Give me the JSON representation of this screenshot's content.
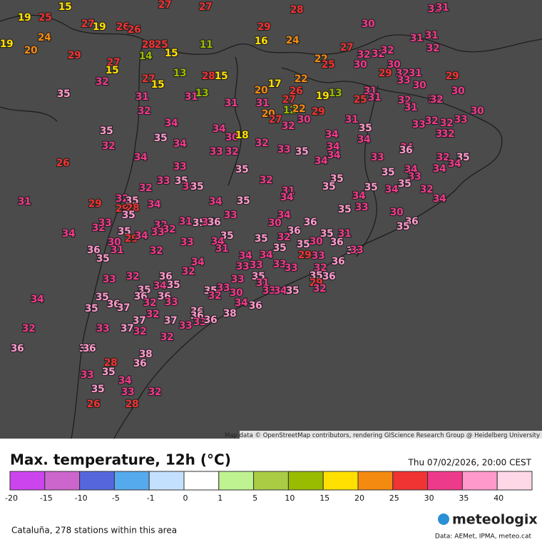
{
  "map": {
    "attribution": "Map data © OpenStreetMap contributors, rendering GIScience Research Group @ Heidelberg University",
    "stations": [
      19,
      25,
      15,
      27,
      27,
      28,
      32,
      31,
      27,
      19,
      26,
      26,
      24,
      19,
      20,
      29,
      29,
      24,
      16,
      11,
      30,
      31,
      31,
      32,
      28,
      25,
      15,
      14,
      27,
      15,
      27,
      22,
      25,
      32,
      32,
      32,
      30,
      13,
      28,
      15,
      22,
      35,
      32,
      27,
      15,
      17,
      30,
      29,
      32,
      31,
      33,
      30,
      29,
      31,
      31,
      13,
      20,
      26,
      27,
      19,
      13,
      31,
      31,
      25,
      30,
      31,
      31,
      32,
      32,
      32,
      32,
      20,
      12,
      22,
      29,
      31,
      30,
      34,
      27,
      32,
      30,
      31,
      33,
      32,
      32,
      33,
      35,
      34,
      30,
      18,
      35,
      35,
      34,
      34,
      32,
      32,
      32,
      34,
      33,
      32,
      32,
      33,
      35,
      34,
      34,
      34,
      36,
      26,
      34,
      34,
      33,
      32,
      35,
      33,
      35,
      35,
      34,
      33,
      34,
      34,
      33,
      35,
      32,
      34,
      35,
      35,
      32,
      31,
      34,
      35,
      35,
      34,
      35,
      32,
      31,
      29,
      34,
      35,
      34,
      34,
      32,
      35,
      29,
      28,
      34,
      35,
      33,
      35,
      34,
      30,
      32,
      33,
      33,
      31,
      35,
      34,
      36,
      32,
      32,
      30,
      36,
      36,
      35,
      34,
      35,
      29,
      34,
      33,
      35,
      35,
      31,
      36,
      35,
      32,
      30,
      31,
      33,
      34,
      31,
      30,
      36,
      36,
      33,
      36,
      35,
      32,
      35,
      35,
      34,
      34,
      29,
      33,
      34,
      36,
      33,
      33,
      33,
      33,
      32,
      32,
      33,
      32,
      36,
      35,
      36,
      33,
      35,
      31,
      29,
      32,
      34,
      35,
      35,
      36,
      36,
      35,
      33,
      32,
      30,
      33,
      34,
      35,
      34,
      35,
      32,
      33,
      34,
      36,
      35,
      36,
      37,
      32,
      36,
      36,
      38,
      37,
      37,
      33,
      36,
      33,
      33,
      37,
      32,
      32,
      32,
      36,
      38,
      36,
      38,
      28,
      36,
      35,
      33,
      34,
      35,
      33,
      32,
      26,
      28
    ]
  },
  "header": {
    "title": "Max. temperature, 12h (°C)",
    "date": "Thu 07/02/2026, 20:00 CEST"
  },
  "legend": {
    "stops": [
      {
        "value": -20,
        "color": "#cc44ee"
      },
      {
        "value": -15,
        "color": "#cc66cc"
      },
      {
        "value": -10,
        "color": "#5566dd"
      },
      {
        "value": -5,
        "color": "#55aaee"
      },
      {
        "value": -1,
        "color": "#c4e0ff"
      },
      {
        "value": 0,
        "color": "#ffffff"
      },
      {
        "value": 1,
        "color": "#bff290"
      },
      {
        "value": 5,
        "color": "#aacc44"
      },
      {
        "value": 10,
        "color": "#99bb00"
      },
      {
        "value": 15,
        "color": "#ffe000"
      },
      {
        "value": 20,
        "color": "#f58a10"
      },
      {
        "value": 25,
        "color": "#f03333"
      },
      {
        "value": 30,
        "color": "#ee3a8a"
      },
      {
        "value": 35,
        "color": "#ff99cc"
      },
      {
        "value": 40,
        "color": "#ffd8e8"
      }
    ]
  },
  "footer": {
    "area": "Cataluña, 278 stations within this area",
    "brand": "meteologix",
    "sources": "Data: AEMet, IPMA, meteo.cat"
  }
}
